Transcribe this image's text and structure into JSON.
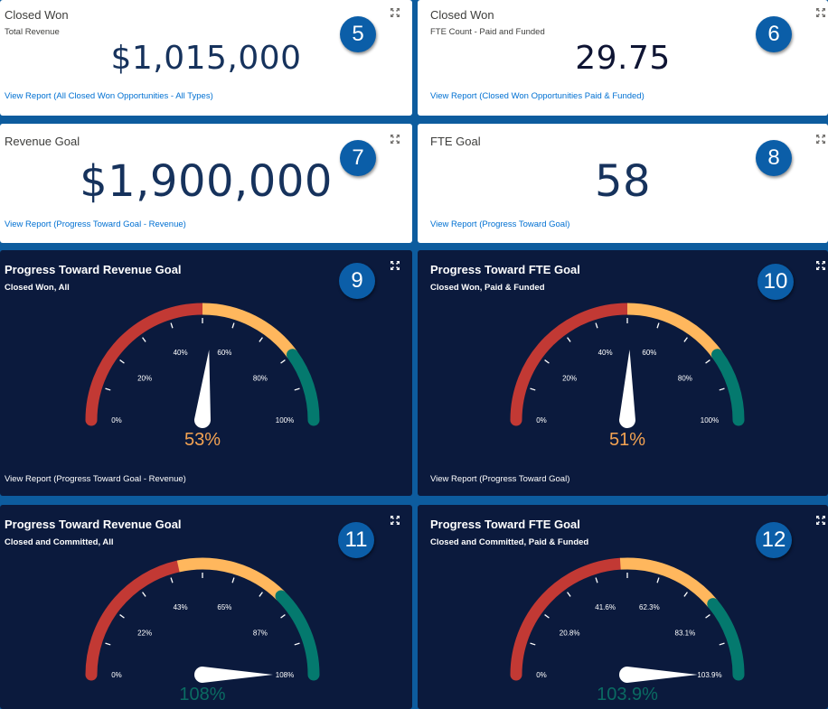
{
  "colors": {
    "red": "#c23934",
    "amber": "#ffb75d",
    "green": "#04796e",
    "navy": "#0b1a3d",
    "badge": "#0b5ea8",
    "link": "#0070d2"
  },
  "cards": [
    {
      "title": "Closed Won",
      "subtitle": "Total Revenue",
      "value": "$1,015,000",
      "link": "View Report (All Closed Won Opportunities - All Types)",
      "badge": "5"
    },
    {
      "title": "Closed Won",
      "subtitle": "FTE Count - Paid and Funded",
      "value": "29.75",
      "link": "View Report (Closed Won Opportunities Paid & Funded)",
      "badge": "6"
    },
    {
      "title": "Revenue Goal",
      "value": "$1,900,000",
      "link": "View Report (Progress Toward Goal - Revenue)",
      "badge": "7"
    },
    {
      "title": "FTE Goal",
      "value": "58",
      "link": "View Report (Progress Toward Goal)",
      "badge": "8"
    }
  ],
  "gauges": [
    {
      "title": "Progress Toward Revenue Goal",
      "subtitle": "Closed Won, All",
      "link": "View Report (Progress Toward Goal - Revenue)",
      "badge": "9",
      "value_label": "53%",
      "value_fraction": 0.53,
      "value_color": "#f4a352",
      "ticks": [
        "0%",
        "20%",
        "40%",
        "60%",
        "80%",
        "100%"
      ],
      "segments": [
        0.5,
        0.8
      ]
    },
    {
      "title": "Progress Toward FTE Goal",
      "subtitle": "Closed Won, Paid & Funded",
      "link": "View Report (Progress Toward Goal)",
      "badge": "10",
      "value_label": "51%",
      "value_fraction": 0.51,
      "value_color": "#f4a352",
      "ticks": [
        "0%",
        "20%",
        "40%",
        "60%",
        "80%",
        "100%"
      ],
      "segments": [
        0.5,
        0.8
      ]
    },
    {
      "title": "Progress Toward Revenue Goal",
      "subtitle": "Closed and Committed, All",
      "badge": "11",
      "value_label": "108%",
      "value_fraction": 1.0,
      "value_color": "#0a6b62",
      "ticks": [
        "0%",
        "22%",
        "43%",
        "65%",
        "87%",
        "108%"
      ],
      "segments": [
        0.43,
        0.75
      ]
    },
    {
      "title": "Progress Toward FTE Goal",
      "subtitle": "Closed and Committed, Paid & Funded",
      "badge": "12",
      "value_label": "103.9%",
      "value_fraction": 1.0,
      "value_color": "#0a6b62",
      "ticks": [
        "0%",
        "20.8%",
        "41.6%",
        "62.3%",
        "83.1%",
        "103.9%"
      ],
      "segments": [
        0.48,
        0.78
      ]
    }
  ]
}
